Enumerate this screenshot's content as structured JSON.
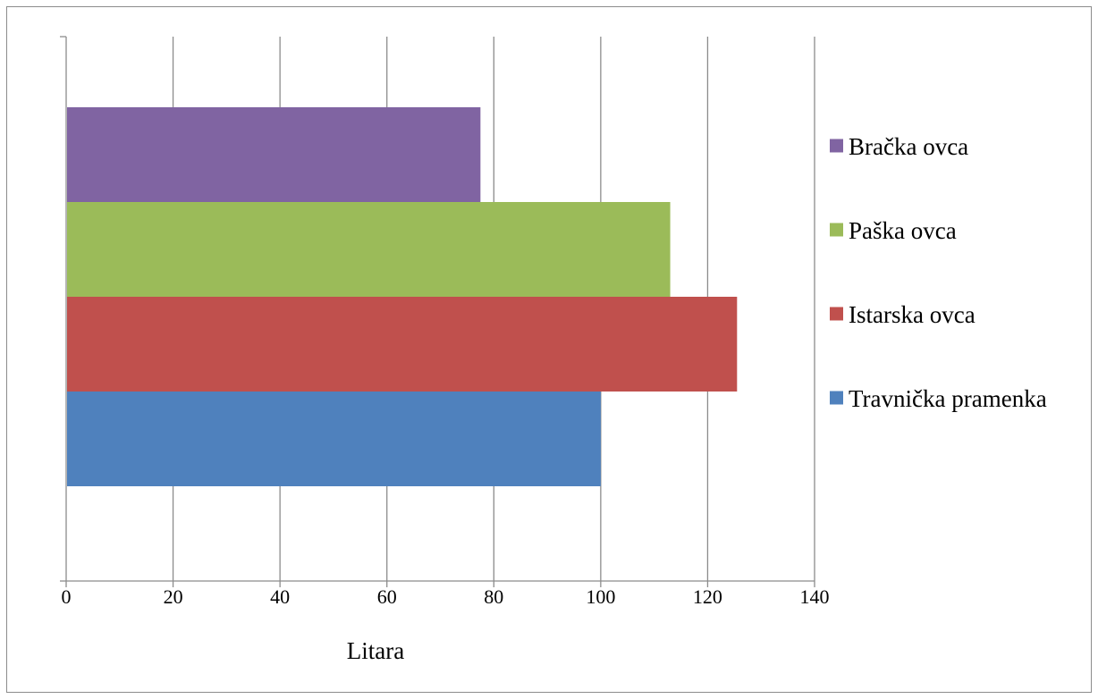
{
  "chart_data": {
    "type": "bar",
    "orientation": "horizontal",
    "xlabel": "Litara",
    "xlim": [
      0,
      140
    ],
    "x_ticks": [
      "0",
      "20",
      "40",
      "60",
      "80",
      "100",
      "120",
      "140"
    ],
    "grid": "vertical",
    "legend_position": "right",
    "series": [
      {
        "name": "Travnička pramenka",
        "value": 100,
        "color": "#4F81BD"
      },
      {
        "name": "Istarska ovca",
        "value": 125.5,
        "color": "#C0504D"
      },
      {
        "name": "Paška ovca",
        "value": 113,
        "color": "#9BBB59"
      },
      {
        "name": "Bračka ovca",
        "value": 77.5,
        "color": "#8064A2"
      }
    ]
  }
}
